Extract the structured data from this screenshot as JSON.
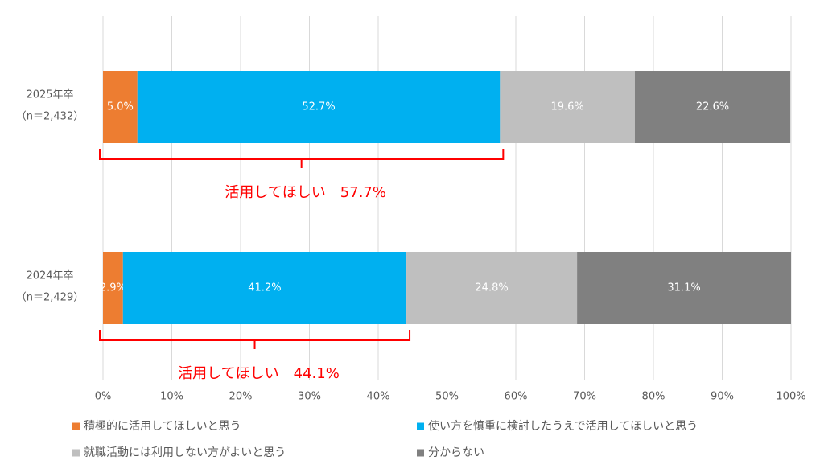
{
  "chart_data": {
    "type": "stacked-bar-horizontal",
    "categories": [
      "2025年卒",
      "2024年卒"
    ],
    "category_notes": [
      "（n＝2,432）",
      "（n＝2,429）"
    ],
    "series": [
      {
        "name": "積極的に活用してほしいと思う",
        "color": "#ED7D31",
        "values": [
          5.0,
          2.9
        ],
        "value_labels": [
          "5.0%",
          "2.9%"
        ]
      },
      {
        "name": "使い方を慎重に検討したうえで活用してほしいと思う",
        "color": "#00B0F0",
        "values": [
          52.7,
          41.2
        ],
        "value_labels": [
          "52.7%",
          "41.2%"
        ]
      },
      {
        "name": "就職活動には利用しない方がよいと思う",
        "color": "#BFBFBF",
        "values": [
          19.6,
          24.8
        ],
        "value_labels": [
          "19.6%",
          "24.8%"
        ]
      },
      {
        "name": "分からない",
        "color": "#808080",
        "values": [
          22.6,
          31.1
        ],
        "value_labels": [
          "22.6%",
          "31.1%"
        ]
      }
    ],
    "xlim": [
      0,
      100
    ],
    "xticks": [
      {
        "value": 0,
        "label": "0%"
      },
      {
        "value": 10,
        "label": "10%"
      },
      {
        "value": 20,
        "label": "20%"
      },
      {
        "value": 30,
        "label": "30%"
      },
      {
        "value": 40,
        "label": "40%"
      },
      {
        "value": 50,
        "label": "50%"
      },
      {
        "value": 60,
        "label": "60%"
      },
      {
        "value": 70,
        "label": "70%"
      },
      {
        "value": 80,
        "label": "80%"
      },
      {
        "value": 90,
        "label": "90%"
      },
      {
        "value": 100,
        "label": "100%"
      }
    ],
    "grid": true,
    "annotations": [
      {
        "text": "活用してほしい　57.7%",
        "value": 57.7,
        "color": "#FF0000"
      },
      {
        "text": "活用してほしい　44.1%",
        "value": 44.1,
        "color": "#FF0000"
      }
    ],
    "legend": "bottom"
  }
}
